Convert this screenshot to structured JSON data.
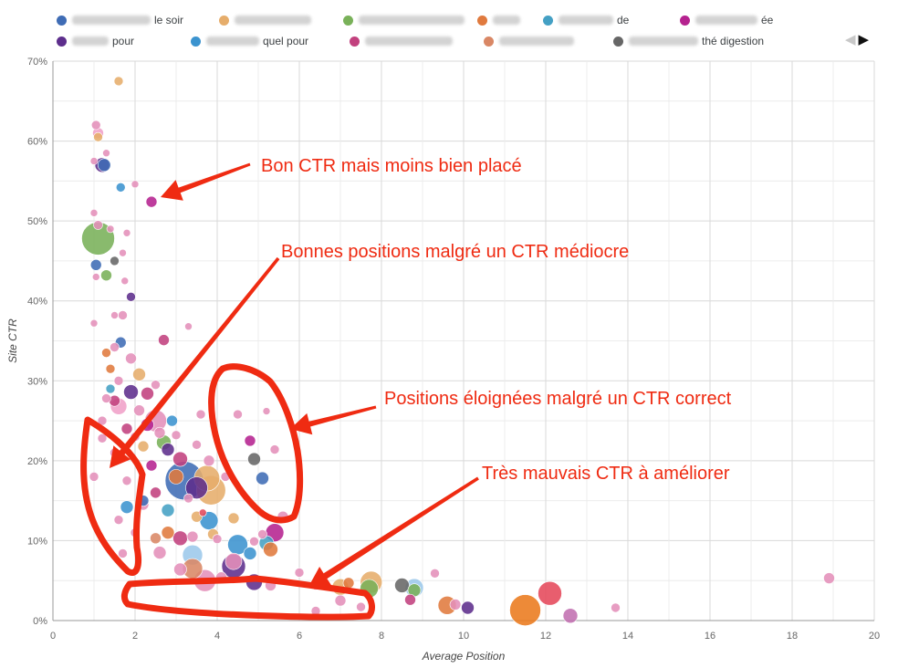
{
  "legend": {
    "items": [
      {
        "label": "le soir",
        "color": "#3f6cb5"
      },
      {
        "label": "",
        "color": "#e6ad6b"
      },
      {
        "label": "",
        "color": "#79b159"
      },
      {
        "label": "",
        "color": "#e07a3e"
      },
      {
        "label": "de",
        "color": "#44a0c4"
      },
      {
        "label": "ée",
        "color": "#b5228f"
      },
      {
        "label": "pour",
        "color": "#5d2e8c"
      },
      {
        "label": "quel pour",
        "color": "#3b93cf"
      },
      {
        "label": "",
        "color": "#c2417e"
      },
      {
        "label": "",
        "color": "#d98765"
      },
      {
        "label": "thé digestion",
        "color": "#666666"
      }
    ],
    "pager": {
      "prev": "◀",
      "next": "▶"
    }
  },
  "chart_data": {
    "type": "scatter",
    "xlabel": "Average Position",
    "ylabel": "Site CTR",
    "xlim": [
      0,
      20
    ],
    "ylim": [
      0,
      70
    ],
    "x_ticks": [
      "0",
      "2",
      "4",
      "6",
      "8",
      "10",
      "12",
      "14",
      "16",
      "18",
      "20"
    ],
    "y_ticks": [
      "0%",
      "10%",
      "20%",
      "30%",
      "40%",
      "50%",
      "60%",
      "70%"
    ],
    "grid": true,
    "legend_position": "top",
    "points": [
      {
        "x": 1.6,
        "y": 67.5,
        "size": 5,
        "color": "#e6ad6b"
      },
      {
        "x": 1.05,
        "y": 62.0,
        "size": 5,
        "color": "#e48fba"
      },
      {
        "x": 1.1,
        "y": 61.0,
        "size": 6,
        "color": "#f0a0c8"
      },
      {
        "x": 1.1,
        "y": 60.5,
        "size": 5,
        "color": "#e6ad6b"
      },
      {
        "x": 1.0,
        "y": 57.5,
        "size": 4,
        "color": "#e48fba"
      },
      {
        "x": 1.3,
        "y": 58.5,
        "size": 4,
        "color": "#e48fba"
      },
      {
        "x": 1.2,
        "y": 57.0,
        "size": 8,
        "color": "#5d2e8c"
      },
      {
        "x": 1.25,
        "y": 57.0,
        "size": 7,
        "color": "#3f6cb5"
      },
      {
        "x": 1.65,
        "y": 54.2,
        "size": 5,
        "color": "#3b93cf"
      },
      {
        "x": 2.0,
        "y": 54.6,
        "size": 4,
        "color": "#e48fba"
      },
      {
        "x": 2.4,
        "y": 52.4,
        "size": 6,
        "color": "#b5228f"
      },
      {
        "x": 1.0,
        "y": 51.0,
        "size": 4,
        "color": "#e48fba"
      },
      {
        "x": 1.1,
        "y": 49.5,
        "size": 5,
        "color": "#e48fba"
      },
      {
        "x": 1.4,
        "y": 49.0,
        "size": 4,
        "color": "#e48fba"
      },
      {
        "x": 1.8,
        "y": 48.5,
        "size": 4,
        "color": "#e48fba"
      },
      {
        "x": 1.1,
        "y": 47.8,
        "size": 18,
        "color": "#79b159"
      },
      {
        "x": 1.7,
        "y": 46.0,
        "size": 4,
        "color": "#e48fba"
      },
      {
        "x": 1.5,
        "y": 45.0,
        "size": 5,
        "color": "#666666"
      },
      {
        "x": 1.05,
        "y": 44.5,
        "size": 6,
        "color": "#3f6cb5"
      },
      {
        "x": 1.3,
        "y": 43.2,
        "size": 6,
        "color": "#79b159"
      },
      {
        "x": 1.05,
        "y": 43.0,
        "size": 4,
        "color": "#e48fba"
      },
      {
        "x": 1.75,
        "y": 42.5,
        "size": 4,
        "color": "#e48fba"
      },
      {
        "x": 1.9,
        "y": 40.5,
        "size": 5,
        "color": "#5d2e8c"
      },
      {
        "x": 1.5,
        "y": 38.2,
        "size": 4,
        "color": "#e48fba"
      },
      {
        "x": 1.7,
        "y": 38.2,
        "size": 5,
        "color": "#e48fba"
      },
      {
        "x": 1.0,
        "y": 37.2,
        "size": 4,
        "color": "#e48fba"
      },
      {
        "x": 3.3,
        "y": 36.8,
        "size": 4,
        "color": "#e48fba"
      },
      {
        "x": 2.7,
        "y": 35.1,
        "size": 6,
        "color": "#c2417e"
      },
      {
        "x": 1.65,
        "y": 34.8,
        "size": 6,
        "color": "#3f6cb5"
      },
      {
        "x": 1.5,
        "y": 34.2,
        "size": 5,
        "color": "#e48fba"
      },
      {
        "x": 1.3,
        "y": 33.5,
        "size": 5,
        "color": "#e07a3e"
      },
      {
        "x": 1.9,
        "y": 32.8,
        "size": 6,
        "color": "#e48fba"
      },
      {
        "x": 1.4,
        "y": 31.5,
        "size": 5,
        "color": "#e07a3e"
      },
      {
        "x": 2.1,
        "y": 30.8,
        "size": 7,
        "color": "#e6ad6b"
      },
      {
        "x": 1.6,
        "y": 30.0,
        "size": 5,
        "color": "#e48fba"
      },
      {
        "x": 2.5,
        "y": 29.5,
        "size": 5,
        "color": "#e48fba"
      },
      {
        "x": 1.4,
        "y": 29.0,
        "size": 5,
        "color": "#44a0c4"
      },
      {
        "x": 1.9,
        "y": 28.6,
        "size": 8,
        "color": "#5d2e8c"
      },
      {
        "x": 2.3,
        "y": 28.4,
        "size": 7,
        "color": "#c2417e"
      },
      {
        "x": 1.3,
        "y": 27.8,
        "size": 5,
        "color": "#e48fba"
      },
      {
        "x": 1.6,
        "y": 26.8,
        "size": 9,
        "color": "#f0a0c8"
      },
      {
        "x": 2.1,
        "y": 26.3,
        "size": 6,
        "color": "#e48fba"
      },
      {
        "x": 2.9,
        "y": 25.0,
        "size": 6,
        "color": "#3b93cf"
      },
      {
        "x": 2.5,
        "y": 25.0,
        "size": 12,
        "color": "#e48fba"
      },
      {
        "x": 2.3,
        "y": 24.5,
        "size": 7,
        "color": "#b5228f"
      },
      {
        "x": 1.8,
        "y": 24.0,
        "size": 6,
        "color": "#c2417e"
      },
      {
        "x": 2.6,
        "y": 23.5,
        "size": 6,
        "color": "#e48fba"
      },
      {
        "x": 1.2,
        "y": 22.8,
        "size": 5,
        "color": "#e48fba"
      },
      {
        "x": 2.7,
        "y": 22.3,
        "size": 8,
        "color": "#79b159"
      },
      {
        "x": 3.5,
        "y": 22.0,
        "size": 5,
        "color": "#e48fba"
      },
      {
        "x": 2.2,
        "y": 21.8,
        "size": 6,
        "color": "#e6ad6b"
      },
      {
        "x": 2.8,
        "y": 21.4,
        "size": 7,
        "color": "#5d2e8c"
      },
      {
        "x": 1.5,
        "y": 21.0,
        "size": 5,
        "color": "#e48fba"
      },
      {
        "x": 3.1,
        "y": 20.2,
        "size": 8,
        "color": "#c2417e"
      },
      {
        "x": 2.4,
        "y": 19.4,
        "size": 6,
        "color": "#b5228f"
      },
      {
        "x": 1.0,
        "y": 18.0,
        "size": 5,
        "color": "#e48fba"
      },
      {
        "x": 3.0,
        "y": 18.0,
        "size": 8,
        "color": "#e07a3e"
      },
      {
        "x": 1.8,
        "y": 17.5,
        "size": 5,
        "color": "#e48fba"
      },
      {
        "x": 3.2,
        "y": 17.5,
        "size": 21,
        "color": "#3f6cb5"
      },
      {
        "x": 3.75,
        "y": 17.8,
        "size": 14,
        "color": "#e6ad6b"
      },
      {
        "x": 3.85,
        "y": 16.3,
        "size": 16,
        "color": "#e6ad6b"
      },
      {
        "x": 3.5,
        "y": 16.6,
        "size": 12,
        "color": "#5d2e8c"
      },
      {
        "x": 2.5,
        "y": 16.0,
        "size": 6,
        "color": "#c2417e"
      },
      {
        "x": 1.8,
        "y": 14.2,
        "size": 7,
        "color": "#3b93cf"
      },
      {
        "x": 2.2,
        "y": 14.5,
        "size": 6,
        "color": "#e48fba"
      },
      {
        "x": 2.8,
        "y": 13.8,
        "size": 7,
        "color": "#44a0c4"
      },
      {
        "x": 3.3,
        "y": 15.3,
        "size": 5,
        "color": "#e48fba"
      },
      {
        "x": 3.5,
        "y": 13.0,
        "size": 6,
        "color": "#e6ad6b"
      },
      {
        "x": 3.8,
        "y": 12.5,
        "size": 10,
        "color": "#3b93cf"
      },
      {
        "x": 4.4,
        "y": 12.8,
        "size": 6,
        "color": "#e6ad6b"
      },
      {
        "x": 5.6,
        "y": 13.0,
        "size": 6,
        "color": "#e48fba"
      },
      {
        "x": 1.6,
        "y": 12.6,
        "size": 5,
        "color": "#e48fba"
      },
      {
        "x": 2.8,
        "y": 11.0,
        "size": 7,
        "color": "#e07a3e"
      },
      {
        "x": 3.4,
        "y": 10.5,
        "size": 6,
        "color": "#e48fba"
      },
      {
        "x": 3.1,
        "y": 10.3,
        "size": 8,
        "color": "#c2417e"
      },
      {
        "x": 2.5,
        "y": 10.3,
        "size": 6,
        "color": "#d98765"
      },
      {
        "x": 4.0,
        "y": 10.2,
        "size": 5,
        "color": "#e48fba"
      },
      {
        "x": 5.4,
        "y": 11.0,
        "size": 10,
        "color": "#b5228f"
      },
      {
        "x": 5.1,
        "y": 10.8,
        "size": 5,
        "color": "#e48fba"
      },
      {
        "x": 3.9,
        "y": 10.8,
        "size": 6,
        "color": "#e6ad6b"
      },
      {
        "x": 4.5,
        "y": 9.5,
        "size": 11,
        "color": "#3b93cf"
      },
      {
        "x": 5.2,
        "y": 9.7,
        "size": 8,
        "color": "#44a0c4"
      },
      {
        "x": 5.3,
        "y": 8.9,
        "size": 8,
        "color": "#e07a3e"
      },
      {
        "x": 4.8,
        "y": 8.4,
        "size": 7,
        "color": "#3b93cf"
      },
      {
        "x": 3.4,
        "y": 8.2,
        "size": 11,
        "color": "#9cc8ea"
      },
      {
        "x": 2.6,
        "y": 8.5,
        "size": 7,
        "color": "#e48fba"
      },
      {
        "x": 1.7,
        "y": 8.4,
        "size": 5,
        "color": "#e48fba"
      },
      {
        "x": 4.4,
        "y": 7.4,
        "size": 9,
        "color": "#e48fba"
      },
      {
        "x": 4.4,
        "y": 6.8,
        "size": 13,
        "color": "#5d2e8c"
      },
      {
        "x": 3.4,
        "y": 6.5,
        "size": 11,
        "color": "#d98765"
      },
      {
        "x": 3.1,
        "y": 6.4,
        "size": 7,
        "color": "#e48fba"
      },
      {
        "x": 6.0,
        "y": 6.0,
        "size": 5,
        "color": "#e48fba"
      },
      {
        "x": 3.7,
        "y": 5.0,
        "size": 12,
        "color": "#e48fba"
      },
      {
        "x": 4.9,
        "y": 4.8,
        "size": 9,
        "color": "#5d2e8c"
      },
      {
        "x": 5.3,
        "y": 4.4,
        "size": 6,
        "color": "#e48fba"
      },
      {
        "x": 6.4,
        "y": 4.4,
        "size": 5,
        "color": "#e48fba"
      },
      {
        "x": 7.2,
        "y": 4.7,
        "size": 6,
        "color": "#e07a3e"
      },
      {
        "x": 7.0,
        "y": 4.2,
        "size": 9,
        "color": "#e6ad6b"
      },
      {
        "x": 7.75,
        "y": 4.8,
        "size": 12,
        "color": "#e6ad6b"
      },
      {
        "x": 7.7,
        "y": 4.0,
        "size": 10,
        "color": "#79b159"
      },
      {
        "x": 8.5,
        "y": 4.4,
        "size": 8,
        "color": "#666666"
      },
      {
        "x": 8.8,
        "y": 4.1,
        "size": 10,
        "color": "#9cc8ea"
      },
      {
        "x": 8.8,
        "y": 3.8,
        "size": 7,
        "color": "#79b159"
      },
      {
        "x": 9.3,
        "y": 5.9,
        "size": 5,
        "color": "#e48fba"
      },
      {
        "x": 8.7,
        "y": 2.6,
        "size": 6,
        "color": "#c2417e"
      },
      {
        "x": 7.0,
        "y": 2.5,
        "size": 6,
        "color": "#e48fba"
      },
      {
        "x": 7.5,
        "y": 1.7,
        "size": 5,
        "color": "#e48fba"
      },
      {
        "x": 9.6,
        "y": 1.9,
        "size": 10,
        "color": "#e07a3e"
      },
      {
        "x": 9.8,
        "y": 2.0,
        "size": 6,
        "color": "#e48fba"
      },
      {
        "x": 10.1,
        "y": 1.6,
        "size": 7,
        "color": "#5d2e8c"
      },
      {
        "x": 11.5,
        "y": 1.3,
        "size": 17,
        "color": "#ea7a1c"
      },
      {
        "x": 12.1,
        "y": 3.4,
        "size": 13,
        "color": "#e5485a"
      },
      {
        "x": 12.6,
        "y": 0.6,
        "size": 8,
        "color": "#c270b0"
      },
      {
        "x": 13.7,
        "y": 1.6,
        "size": 5,
        "color": "#e48fba"
      },
      {
        "x": 18.9,
        "y": 5.3,
        "size": 6,
        "color": "#e48fba"
      },
      {
        "x": 6.4,
        "y": 1.2,
        "size": 5,
        "color": "#e48fba"
      },
      {
        "x": 1.5,
        "y": 27.5,
        "size": 6,
        "color": "#c2417e"
      },
      {
        "x": 1.2,
        "y": 25.0,
        "size": 5,
        "color": "#e48fba"
      },
      {
        "x": 2.0,
        "y": 23.0,
        "size": 5,
        "color": "#e48fba"
      },
      {
        "x": 3.8,
        "y": 20.0,
        "size": 6,
        "color": "#e48fba"
      },
      {
        "x": 4.2,
        "y": 18.0,
        "size": 5,
        "color": "#e48fba"
      },
      {
        "x": 4.8,
        "y": 22.5,
        "size": 6,
        "color": "#b5228f"
      },
      {
        "x": 4.9,
        "y": 20.2,
        "size": 7,
        "color": "#666666"
      },
      {
        "x": 5.1,
        "y": 17.8,
        "size": 7,
        "color": "#3f6cb5"
      },
      {
        "x": 5.4,
        "y": 21.4,
        "size": 5,
        "color": "#e48fba"
      },
      {
        "x": 5.2,
        "y": 26.2,
        "size": 4,
        "color": "#e48fba"
      },
      {
        "x": 4.5,
        "y": 25.8,
        "size": 5,
        "color": "#e48fba"
      },
      {
        "x": 3.6,
        "y": 25.8,
        "size": 5,
        "color": "#e48fba"
      },
      {
        "x": 4.9,
        "y": 9.9,
        "size": 5,
        "color": "#e48fba"
      },
      {
        "x": 3.65,
        "y": 13.5,
        "size": 4,
        "color": "#e5485a"
      },
      {
        "x": 4.1,
        "y": 5.4,
        "size": 6,
        "color": "#e48fba"
      },
      {
        "x": 2.2,
        "y": 15.0,
        "size": 6,
        "color": "#3f6cb5"
      },
      {
        "x": 2.0,
        "y": 11.0,
        "size": 5,
        "color": "#e48fba"
      },
      {
        "x": 3.0,
        "y": 23.2,
        "size": 5,
        "color": "#e48fba"
      }
    ]
  },
  "annotations": [
    {
      "text": "Bon CTR mais moins bien placé"
    },
    {
      "text": "Bonnes positions malgré un CTR médiocre"
    },
    {
      "text": "Positions éloignées malgré un CTR correct"
    },
    {
      "text": "Très mauvais CTR à améliorer"
    }
  ]
}
